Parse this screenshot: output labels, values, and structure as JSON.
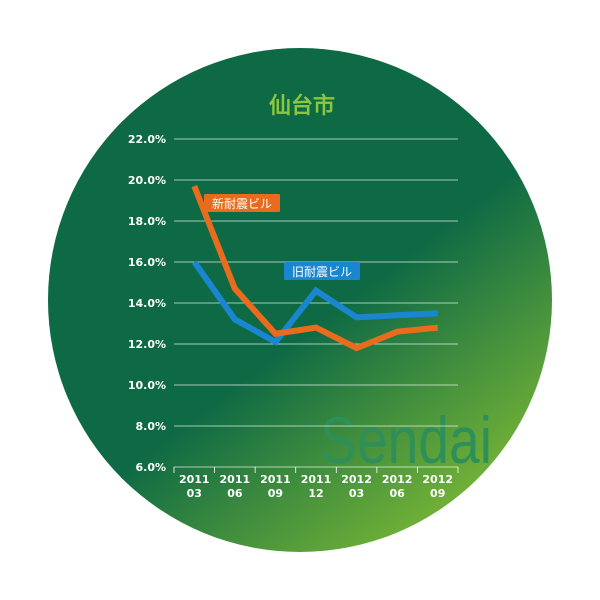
{
  "title": "仙台市",
  "watermark": "Sendai",
  "colors": {
    "background_top": "#0e6a44",
    "background_bottom": "#79b636",
    "title": "#8cc63e",
    "watermark": "#2f8f58",
    "grid": "#ffffff",
    "series_new": "#e96b1d",
    "series_old": "#1a86d0"
  },
  "chart_data": {
    "type": "line",
    "title": "仙台市",
    "x": [
      "2011 03",
      "2011 06",
      "2011 09",
      "2011 12",
      "2012 03",
      "2012 06",
      "2012 09"
    ],
    "x_tick_labels": [
      [
        "2011",
        "03"
      ],
      [
        "2011",
        "06"
      ],
      [
        "2011",
        "09"
      ],
      [
        "2011",
        "12"
      ],
      [
        "2012",
        "03"
      ],
      [
        "2012",
        "06"
      ],
      [
        "2012",
        "09"
      ]
    ],
    "y_tick_labels": [
      "22.0%",
      "20.0%",
      "18.0%",
      "16.0%",
      "14.0%",
      "12.0%",
      "10.0%",
      "8.0%",
      "6.0%"
    ],
    "ylim": [
      6.0,
      22.0
    ],
    "y_unit": "%",
    "grid": true,
    "series": [
      {
        "name": "新耐震ビル",
        "values": [
          19.7,
          14.7,
          12.5,
          12.8,
          11.8,
          12.6,
          12.8
        ]
      },
      {
        "name": "旧耐震ビル",
        "values": [
          16.0,
          13.2,
          12.1,
          14.6,
          13.3,
          13.4,
          13.5
        ]
      }
    ]
  }
}
